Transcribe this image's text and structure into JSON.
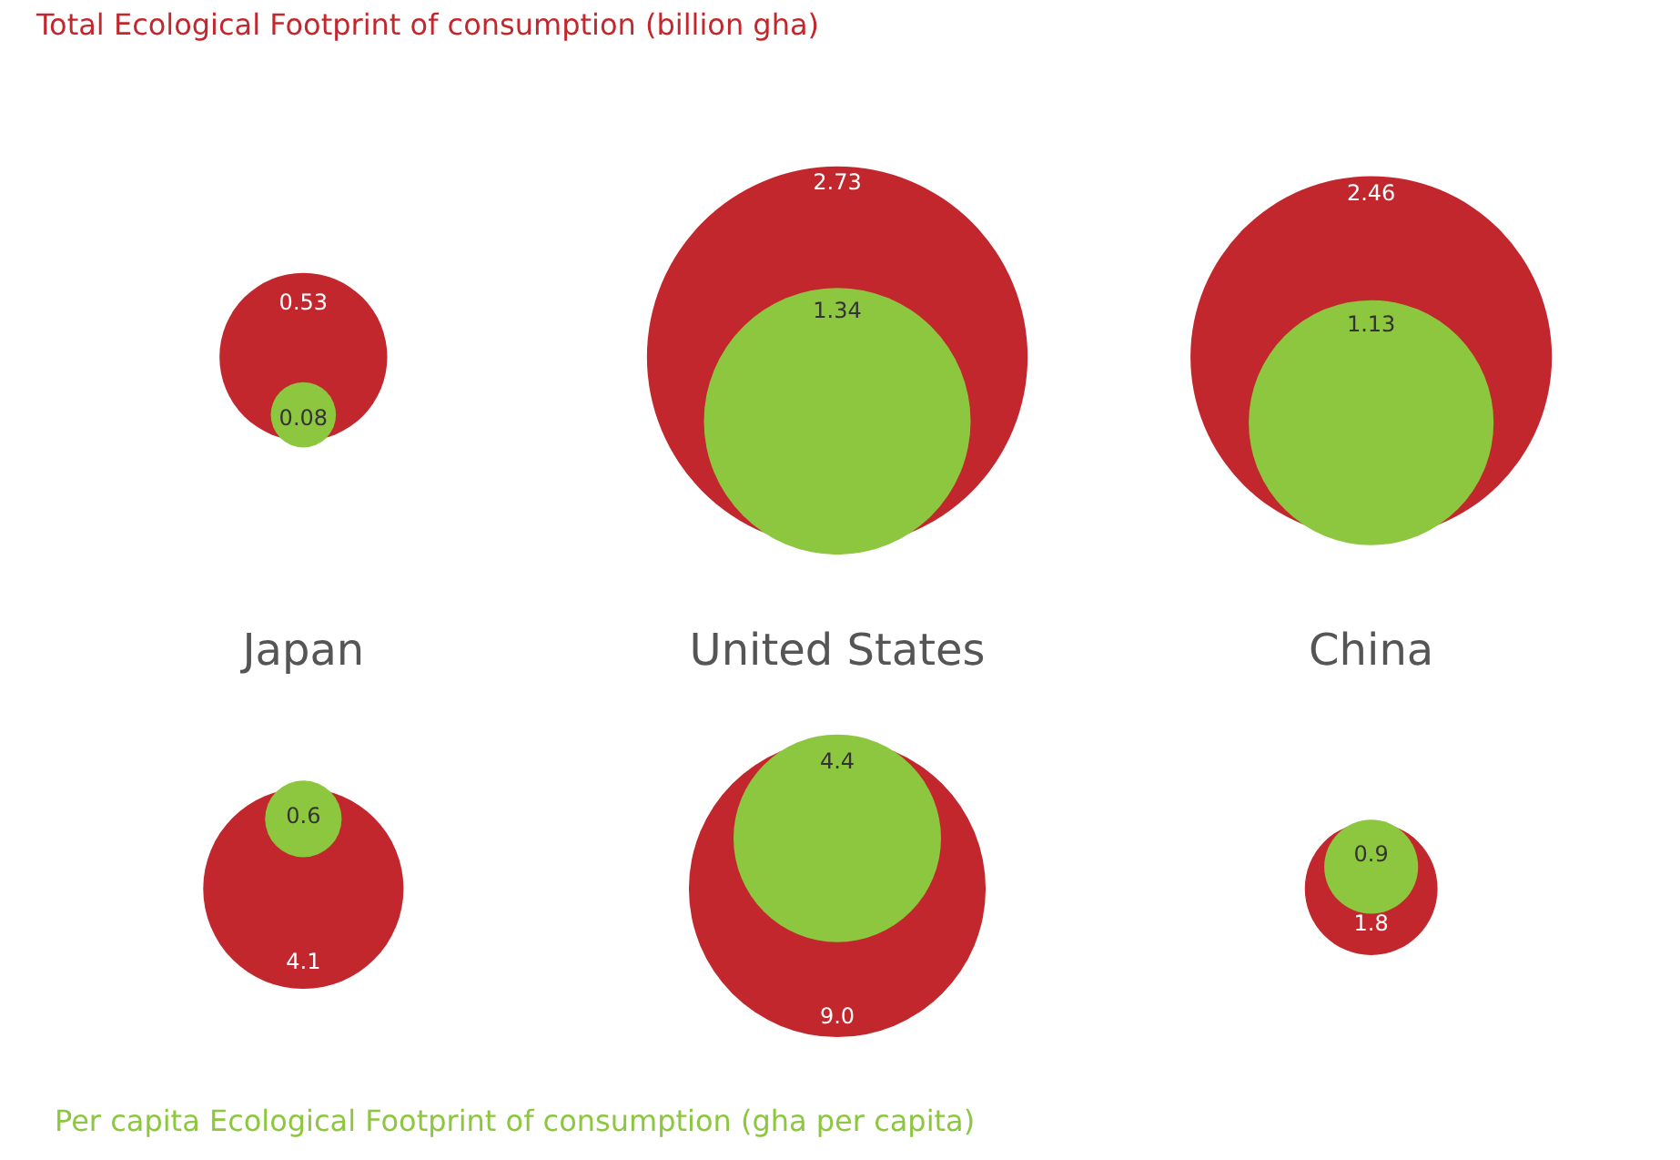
{
  "chart_data": {
    "type": "other",
    "title": "Total Ecological Footprint of consumption (billion gha)",
    "annotations": [
      "Per capita Ecological Footprint of consumption (gha per capita)"
    ],
    "categories": [
      "Japan",
      "United States",
      "China"
    ],
    "series": [
      {
        "color": "#c1272d",
        "values": [
          0.53,
          2.73,
          2.46
        ]
      },
      {
        "color": "#8dc63f",
        "values": [
          0.08,
          1.34,
          1.13
        ]
      },
      {
        "color": "#c1272d",
        "values": [
          4.1,
          9.0,
          1.8
        ],
        "value_labels": [
          "4.1",
          "9.0",
          "1.8"
        ]
      },
      {
        "color": "#8dc63f",
        "values": [
          0.6,
          4.4,
          0.9
        ]
      }
    ],
    "data_labels": true
  }
}
